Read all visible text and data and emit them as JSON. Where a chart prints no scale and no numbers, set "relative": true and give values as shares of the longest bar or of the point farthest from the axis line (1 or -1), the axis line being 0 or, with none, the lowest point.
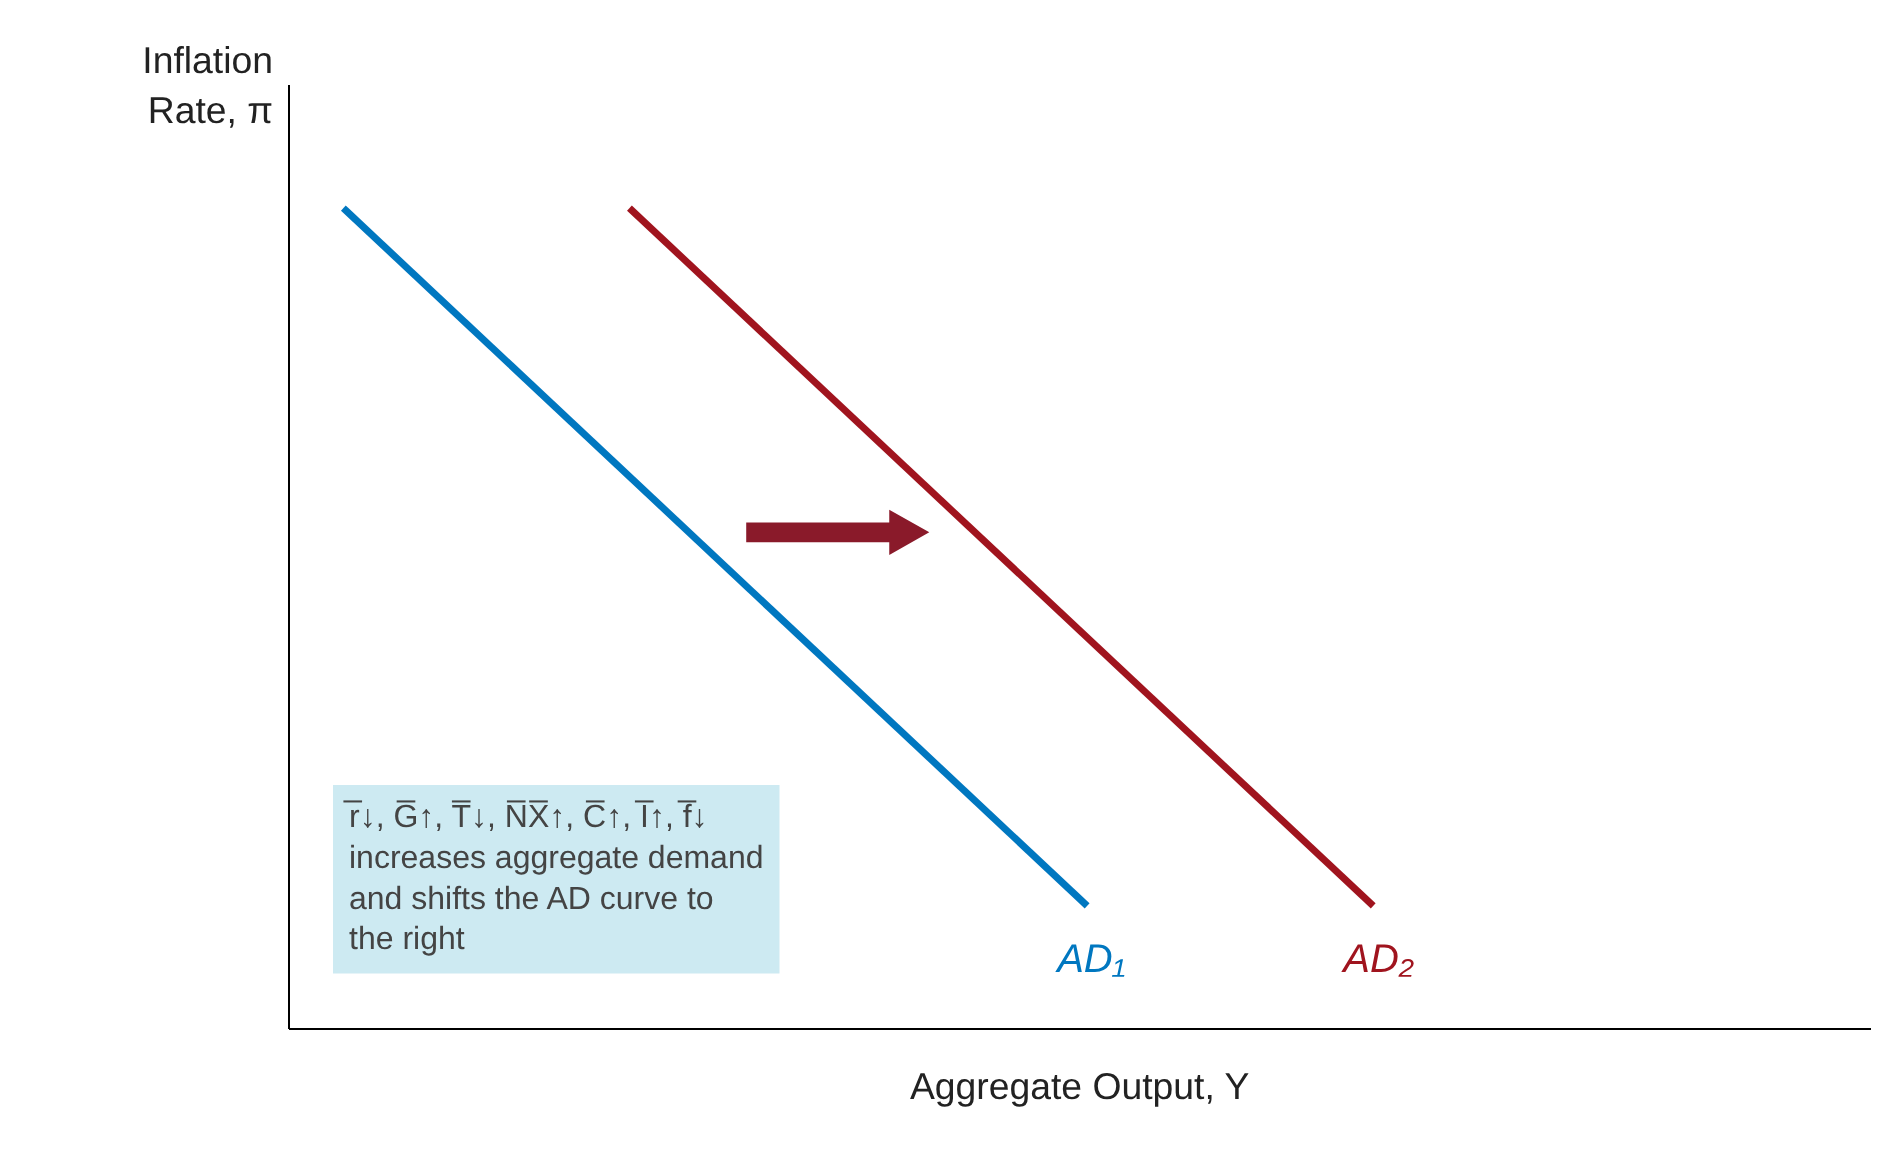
{
  "chart_data": {
    "type": "line",
    "relative": true,
    "xlabel": "Aggregate Output, Y",
    "ylabel": "Inflation Rate, π",
    "categories": [
      null,
      null,
      null,
      null,
      null,
      null,
      null,
      null,
      null,
      null,
      null,
      null,
      null,
      null,
      null,
      null,
      null,
      null,
      null
    ],
    "marker": "none",
    "line_style": "solid",
    "series": [
      {
        "name": "AD₁",
        "color": "#0077c0",
        "values": [
          1,
          null,
          null,
          null,
          null,
          null,
          null,
          null,
          null,
          null,
          null,
          null,
          null,
          0.15,
          null,
          null,
          null,
          null,
          null
        ]
      },
      {
        "name": "AD₂",
        "color": "#a0141e",
        "values": [
          null,
          null,
          null,
          null,
          null,
          1,
          null,
          null,
          null,
          null,
          null,
          null,
          null,
          null,
          null,
          null,
          null,
          null,
          0.15
        ]
      }
    ],
    "annotations": [
      "r̅↓, G̅↑, T̅↓, N̅X̅↑, C̅↑, I̅↑, f̅↓ increases aggregate demand and shifts the AD curve to the right"
    ]
  }
}
